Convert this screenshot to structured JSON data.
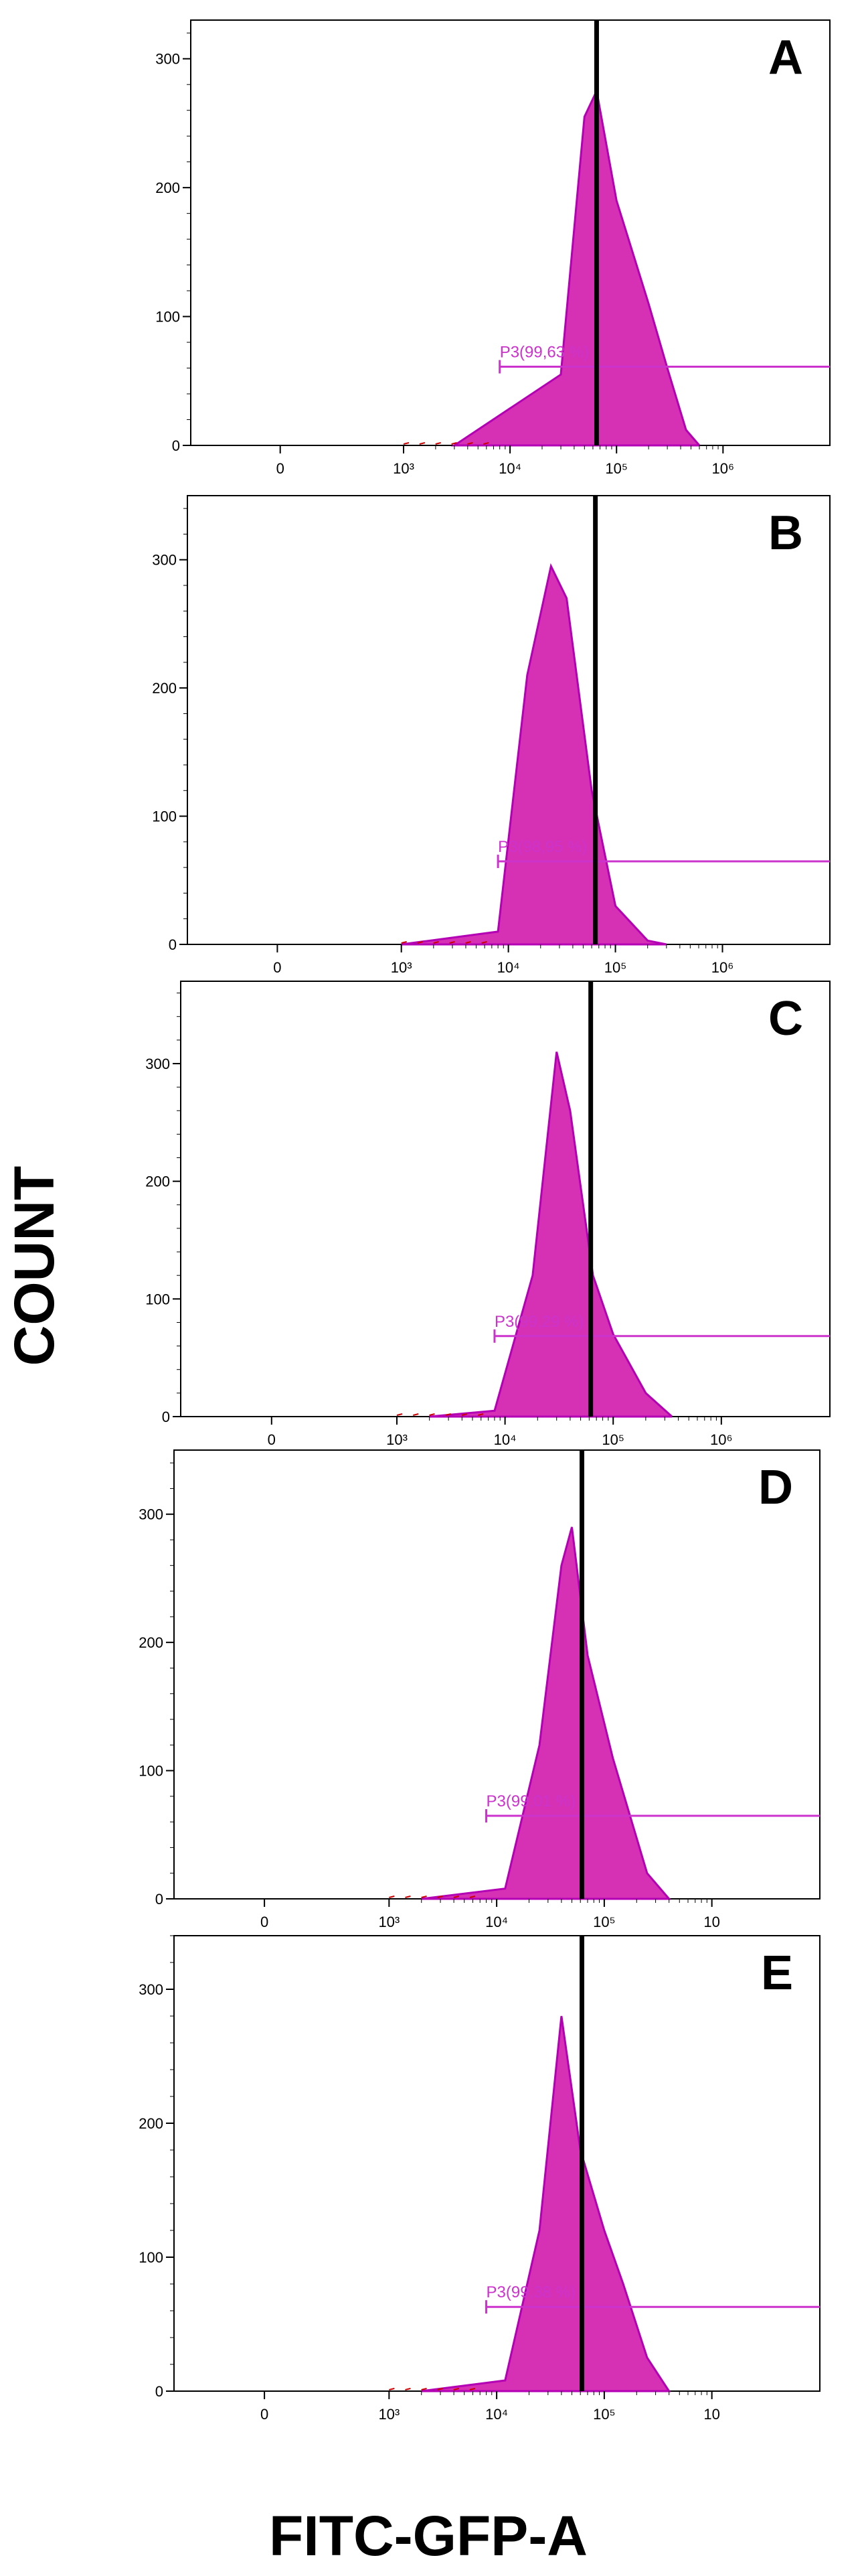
{
  "figure": {
    "ylabel": "COUNT",
    "xlabel": "FITC-GFP-A"
  },
  "colors": {
    "histogram_fill": "#d631b4",
    "histogram_edge": "#b400b4",
    "gate": "#cc33cc",
    "reference_line": "#000000",
    "events_red": "#cc0000"
  },
  "chart_data": [
    {
      "type": "area",
      "panel": "A",
      "xscale": "log (biexponential)",
      "xticks": [
        "0",
        "10³",
        "10⁴",
        "10⁵",
        "10⁶"
      ],
      "yticks": [
        "0",
        "100",
        "200",
        "300"
      ],
      "ylim": [
        0,
        330
      ],
      "gate_label": "P3(99,63 %)",
      "gate_range": [
        8000,
        1000000
      ],
      "reference_line_x": 65000,
      "series": [
        {
          "x": [
            3000,
            30000,
            50000,
            65000,
            100000,
            200000,
            300000,
            450000,
            600000
          ],
          "values": [
            0,
            55,
            255,
            275,
            190,
            110,
            60,
            12,
            0
          ]
        }
      ]
    },
    {
      "type": "area",
      "panel": "B",
      "xscale": "log (biexponential)",
      "xticks": [
        "0",
        "10³",
        "10⁴",
        "10⁵",
        "10⁶"
      ],
      "yticks": [
        "0",
        "100",
        "200",
        "300"
      ],
      "ylim": [
        0,
        350
      ],
      "gate_label": "P3(98,95 %)",
      "gate_range": [
        8000,
        1000000
      ],
      "reference_line_x": 65000,
      "series": [
        {
          "x": [
            1000,
            8000,
            15000,
            25000,
            35000,
            60000,
            100000,
            200000,
            300000
          ],
          "values": [
            0,
            10,
            210,
            295,
            270,
            120,
            30,
            3,
            0
          ]
        }
      ]
    },
    {
      "type": "area",
      "panel": "C",
      "xscale": "log (biexponential)",
      "xticks": [
        "0",
        "10³",
        "10⁴",
        "10⁵",
        "10⁶"
      ],
      "yticks": [
        "0",
        "100",
        "200",
        "300"
      ],
      "ylim": [
        0,
        370
      ],
      "gate_label": "P3(99,29 %)",
      "gate_range": [
        8000,
        1000000
      ],
      "reference_line_x": 62000,
      "series": [
        {
          "x": [
            2000,
            8000,
            18000,
            30000,
            40000,
            65000,
            100000,
            200000,
            350000
          ],
          "values": [
            0,
            5,
            120,
            310,
            260,
            120,
            70,
            20,
            0
          ]
        }
      ]
    },
    {
      "type": "area",
      "panel": "D",
      "xscale": "log (biexponential)",
      "xticks": [
        "0",
        "10³",
        "10⁴",
        "10⁵",
        "10"
      ],
      "yticks": [
        "0",
        "100",
        "200",
        "300"
      ],
      "ylim": [
        0,
        350
      ],
      "gate_label": "P3(99,01 %)",
      "gate_range": [
        8000,
        1000000
      ],
      "reference_line_x": 62000,
      "series": [
        {
          "x": [
            2000,
            12000,
            25000,
            40000,
            50000,
            70000,
            120000,
            250000,
            400000
          ],
          "values": [
            0,
            8,
            120,
            260,
            290,
            190,
            110,
            20,
            0
          ]
        }
      ]
    },
    {
      "type": "area",
      "panel": "E",
      "xscale": "log (biexponential)",
      "xticks": [
        "0",
        "10³",
        "10⁴",
        "10⁵",
        "10"
      ],
      "yticks": [
        "0",
        "100",
        "200",
        "300"
      ],
      "ylim": [
        0,
        340
      ],
      "gate_label": "P3(99,38 %)",
      "gate_range": [
        8000,
        1000000
      ],
      "reference_line_x": 62000,
      "series": [
        {
          "x": [
            2000,
            12000,
            25000,
            40000,
            60000,
            100000,
            150000,
            250000,
            400000
          ],
          "values": [
            0,
            8,
            120,
            280,
            180,
            120,
            80,
            25,
            0
          ]
        }
      ]
    }
  ]
}
